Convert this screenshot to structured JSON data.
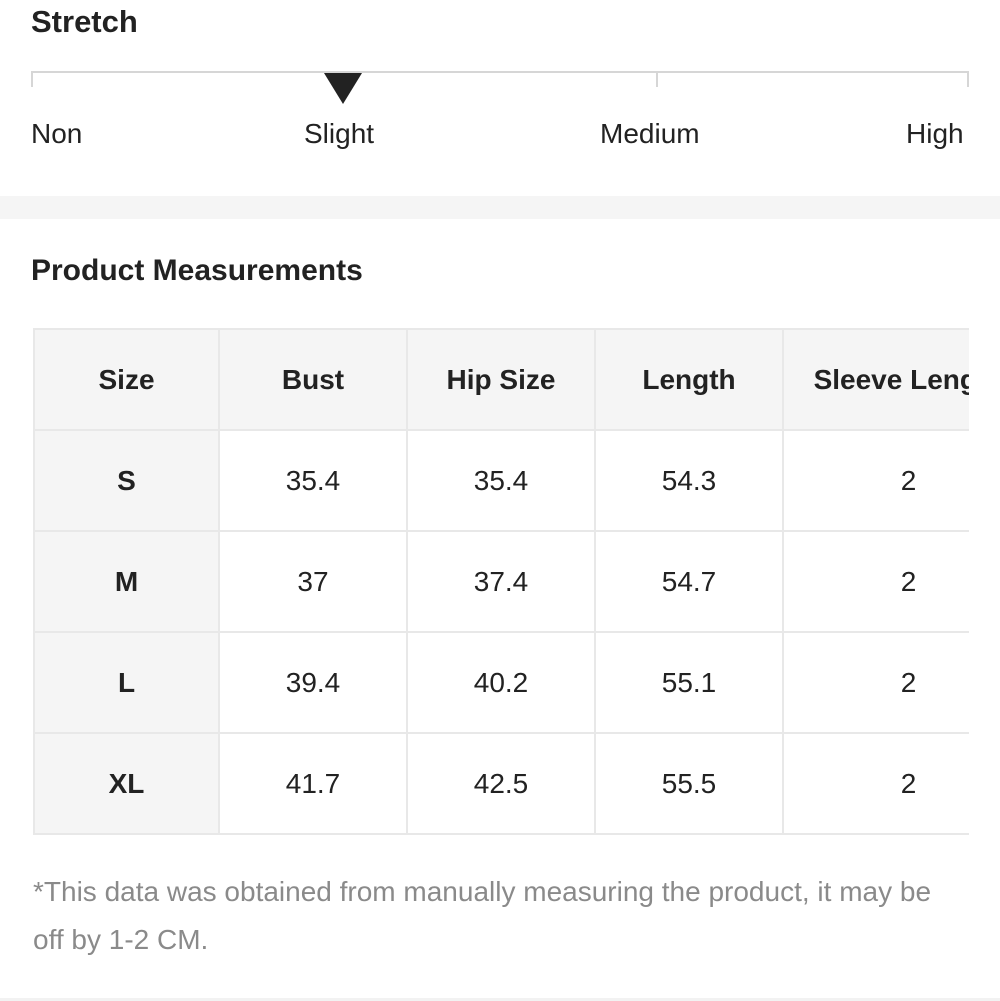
{
  "stretch": {
    "title": "Stretch",
    "levels": [
      "Non",
      "Slight",
      "Medium",
      "High"
    ],
    "selected": "Slight",
    "pointer_color": "#222222"
  },
  "measurements": {
    "title": "Product Measurements",
    "headers": [
      "Size",
      "Bust",
      "Hip Size",
      "Length",
      "Sleeve Length"
    ],
    "rows": [
      [
        "S",
        "35.4",
        "35.4",
        "54.3",
        "2"
      ],
      [
        "M",
        "37",
        "37.4",
        "54.7",
        "2"
      ],
      [
        "L",
        "39.4",
        "40.2",
        "55.1",
        "2"
      ],
      [
        "XL",
        "41.7",
        "42.5",
        "55.5",
        "2"
      ]
    ],
    "note": "*This data was obtained from manually measuring the product, it may be off by 1-2 CM."
  }
}
